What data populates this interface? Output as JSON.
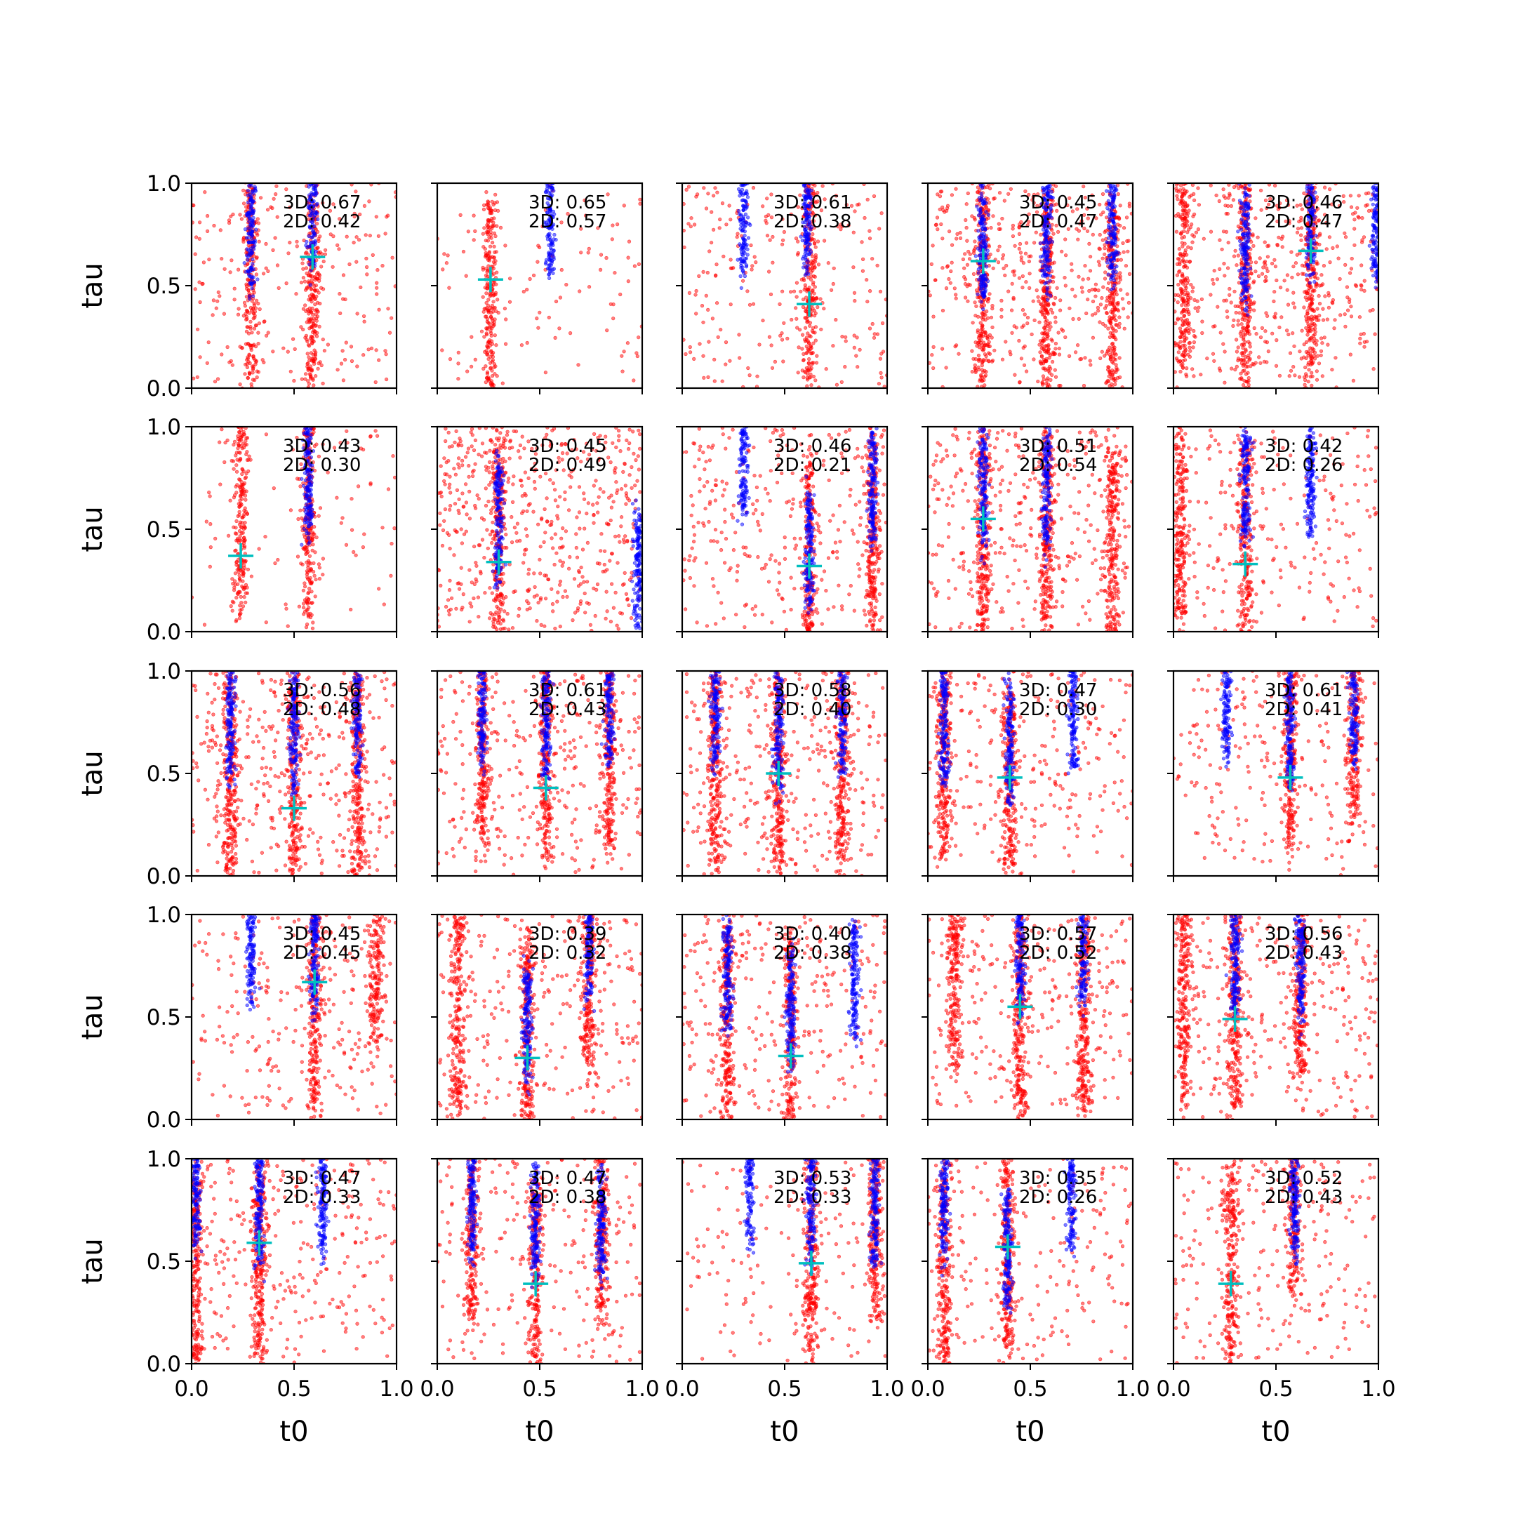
{
  "figure": {
    "layout": "5x5 grid of scatter subplots, shared axes",
    "colors": {
      "series_a": "#ff0000",
      "series_b": "#0000ff",
      "marker": "#00bfbf",
      "frame": "#000000"
    }
  },
  "chart_data": {
    "type": "scatter",
    "xlabel": "t0",
    "ylabel": "tau",
    "xlim": [
      0.0,
      1.0
    ],
    "ylim": [
      0.0,
      1.0
    ],
    "xticks": [
      "0.0",
      "0.5",
      "1.0"
    ],
    "yticks": [
      "0.0",
      "0.5",
      "1.0"
    ],
    "grid": false,
    "panels": [
      {
        "label3d": "3D: 0.67",
        "label2d": "2D: 0.42",
        "marker": [
          0.59,
          0.64
        ],
        "blue": [
          [
            0.29,
            0.78
          ],
          [
            0.59,
            0.88
          ]
        ],
        "red": [
          [
            0.29,
            0.55
          ],
          [
            0.59,
            0.45
          ]
        ],
        "scatter": 1.0
      },
      {
        "label3d": "3D: 0.65",
        "label2d": "2D: 0.57",
        "marker": [
          0.26,
          0.53
        ],
        "blue": [
          [
            0.55,
            0.85
          ]
        ],
        "red": [
          [
            0.26,
            0.4
          ]
        ],
        "scatter": 0.5
      },
      {
        "label3d": "3D: 0.61",
        "label2d": "2D: 0.38",
        "marker": [
          0.62,
          0.41
        ],
        "blue": [
          [
            0.3,
            0.85
          ],
          [
            0.61,
            0.85
          ]
        ],
        "red": [
          [
            0.62,
            0.55
          ]
        ],
        "scatter": 1.1
      },
      {
        "label3d": "3D: 0.45",
        "label2d": "2D: 0.47",
        "marker": [
          0.27,
          0.62
        ],
        "blue": [
          [
            0.27,
            0.7
          ],
          [
            0.58,
            0.75
          ],
          [
            0.9,
            0.8
          ]
        ],
        "red": [
          [
            0.27,
            0.5
          ],
          [
            0.58,
            0.45
          ],
          [
            0.9,
            0.45
          ]
        ],
        "scatter": 1.8
      },
      {
        "label3d": "3D: 0.46",
        "label2d": "2D: 0.47",
        "marker": [
          0.67,
          0.67
        ],
        "blue": [
          [
            0.35,
            0.7
          ],
          [
            0.67,
            0.85
          ],
          [
            0.99,
            0.8
          ]
        ],
        "red": [
          [
            0.05,
            0.6
          ],
          [
            0.35,
            0.5
          ],
          [
            0.67,
            0.55
          ]
        ],
        "scatter": 1.9
      },
      {
        "label3d": "3D: 0.43",
        "label2d": "2D: 0.30",
        "marker": [
          0.24,
          0.37
        ],
        "blue": [
          [
            0.57,
            0.75
          ]
        ],
        "red": [
          [
            0.24,
            0.6
          ],
          [
            0.57,
            0.55
          ]
        ],
        "scatter": 0.4
      },
      {
        "label3d": "3D: 0.45",
        "label2d": "2D: 0.49",
        "marker": [
          0.3,
          0.34
        ],
        "blue": [
          [
            0.3,
            0.55
          ],
          [
            0.98,
            0.3
          ]
        ],
        "red": [
          [
            0.3,
            0.45
          ]
        ],
        "scatter": 2.4
      },
      {
        "label3d": "3D: 0.46",
        "label2d": "2D: 0.21",
        "marker": [
          0.62,
          0.32
        ],
        "blue": [
          [
            0.3,
            0.85
          ],
          [
            0.62,
            0.4
          ],
          [
            0.93,
            0.7
          ]
        ],
        "red": [
          [
            0.62,
            0.35
          ],
          [
            0.93,
            0.45
          ]
        ],
        "scatter": 1.3
      },
      {
        "label3d": "3D: 0.51",
        "label2d": "2D: 0.54",
        "marker": [
          0.27,
          0.55
        ],
        "blue": [
          [
            0.27,
            0.7
          ],
          [
            0.58,
            0.7
          ]
        ],
        "red": [
          [
            0.27,
            0.5
          ],
          [
            0.58,
            0.45
          ],
          [
            0.9,
            0.4
          ]
        ],
        "scatter": 1.6
      },
      {
        "label3d": "3D: 0.42",
        "label2d": "2D: 0.26",
        "marker": [
          0.35,
          0.33
        ],
        "blue": [
          [
            0.35,
            0.7
          ],
          [
            0.67,
            0.75
          ]
        ],
        "red": [
          [
            0.03,
            0.55
          ],
          [
            0.35,
            0.45
          ]
        ],
        "scatter": 1.0
      },
      {
        "label3d": "3D: 0.56",
        "label2d": "2D: 0.48",
        "marker": [
          0.5,
          0.33
        ],
        "blue": [
          [
            0.19,
            0.75
          ],
          [
            0.5,
            0.7
          ],
          [
            0.81,
            0.8
          ]
        ],
        "red": [
          [
            0.19,
            0.5
          ],
          [
            0.5,
            0.5
          ],
          [
            0.81,
            0.5
          ]
        ],
        "scatter": 1.7
      },
      {
        "label3d": "3D: 0.61",
        "label2d": "2D: 0.43",
        "marker": [
          0.53,
          0.43
        ],
        "blue": [
          [
            0.22,
            0.85
          ],
          [
            0.53,
            0.75
          ],
          [
            0.84,
            0.85
          ]
        ],
        "red": [
          [
            0.22,
            0.7
          ],
          [
            0.53,
            0.6
          ],
          [
            0.84,
            0.65
          ]
        ],
        "scatter": 1.4
      },
      {
        "label3d": "3D: 0.58",
        "label2d": "2D: 0.40",
        "marker": [
          0.47,
          0.5
        ],
        "blue": [
          [
            0.16,
            0.8
          ],
          [
            0.47,
            0.7
          ],
          [
            0.78,
            0.8
          ]
        ],
        "red": [
          [
            0.16,
            0.55
          ],
          [
            0.47,
            0.5
          ],
          [
            0.78,
            0.55
          ]
        ],
        "scatter": 1.5
      },
      {
        "label3d": "3D: 0.47",
        "label2d": "2D: 0.30",
        "marker": [
          0.4,
          0.48
        ],
        "blue": [
          [
            0.08,
            0.75
          ],
          [
            0.4,
            0.65
          ],
          [
            0.71,
            0.8
          ]
        ],
        "red": [
          [
            0.08,
            0.55
          ],
          [
            0.4,
            0.45
          ]
        ],
        "scatter": 1.2
      },
      {
        "label3d": "3D: 0.61",
        "label2d": "2D: 0.41",
        "marker": [
          0.57,
          0.48
        ],
        "blue": [
          [
            0.26,
            0.85
          ],
          [
            0.57,
            0.7
          ],
          [
            0.88,
            0.85
          ]
        ],
        "red": [
          [
            0.57,
            0.65
          ],
          [
            0.88,
            0.75
          ]
        ],
        "scatter": 1.0
      },
      {
        "label3d": "3D: 0.45",
        "label2d": "2D: 0.45",
        "marker": [
          0.6,
          0.67
        ],
        "blue": [
          [
            0.29,
            0.85
          ],
          [
            0.6,
            0.8
          ]
        ],
        "red": [
          [
            0.6,
            0.55
          ],
          [
            0.9,
            0.85
          ]
        ],
        "scatter": 1.1
      },
      {
        "label3d": "3D: 0.39",
        "label2d": "2D: 0.32",
        "marker": [
          0.44,
          0.3
        ],
        "blue": [
          [
            0.44,
            0.45
          ],
          [
            0.74,
            0.85
          ]
        ],
        "red": [
          [
            0.1,
            0.55
          ],
          [
            0.44,
            0.4
          ],
          [
            0.74,
            0.75
          ]
        ],
        "scatter": 1.2
      },
      {
        "label3d": "3D: 0.40",
        "label2d": "2D: 0.38",
        "marker": [
          0.53,
          0.31
        ],
        "blue": [
          [
            0.22,
            0.7
          ],
          [
            0.53,
            0.55
          ],
          [
            0.84,
            0.7
          ]
        ],
        "red": [
          [
            0.22,
            0.5
          ],
          [
            0.53,
            0.4
          ]
        ],
        "scatter": 1.2
      },
      {
        "label3d": "3D: 0.57",
        "label2d": "2D: 0.52",
        "marker": [
          0.45,
          0.55
        ],
        "blue": [
          [
            0.45,
            0.8
          ],
          [
            0.76,
            0.85
          ]
        ],
        "red": [
          [
            0.13,
            0.75
          ],
          [
            0.45,
            0.5
          ],
          [
            0.76,
            0.5
          ]
        ],
        "scatter": 1.3
      },
      {
        "label3d": "3D: 0.56",
        "label2d": "2D: 0.43",
        "marker": [
          0.3,
          0.49
        ],
        "blue": [
          [
            0.3,
            0.8
          ],
          [
            0.62,
            0.75
          ]
        ],
        "red": [
          [
            0.05,
            0.6
          ],
          [
            0.3,
            0.55
          ],
          [
            0.62,
            0.7
          ]
        ],
        "scatter": 1.4
      },
      {
        "label3d": "3D: 0.47",
        "label2d": "2D: 0.33",
        "marker": [
          0.33,
          0.59
        ],
        "blue": [
          [
            0.02,
            0.85
          ],
          [
            0.33,
            0.75
          ],
          [
            0.64,
            0.8
          ]
        ],
        "red": [
          [
            0.02,
            0.4
          ],
          [
            0.33,
            0.45
          ]
        ],
        "scatter": 1.3
      },
      {
        "label3d": "3D: 0.47",
        "label2d": "2D: 0.38",
        "marker": [
          0.48,
          0.39
        ],
        "blue": [
          [
            0.17,
            0.8
          ],
          [
            0.48,
            0.7
          ],
          [
            0.8,
            0.7
          ]
        ],
        "red": [
          [
            0.17,
            0.7
          ],
          [
            0.48,
            0.4
          ],
          [
            0.8,
            0.7
          ]
        ],
        "scatter": 1.0
      },
      {
        "label3d": "3D: 0.53",
        "label2d": "2D: 0.33",
        "marker": [
          0.63,
          0.49
        ],
        "blue": [
          [
            0.33,
            0.85
          ],
          [
            0.63,
            0.75
          ],
          [
            0.94,
            0.75
          ]
        ],
        "red": [
          [
            0.63,
            0.55
          ],
          [
            0.94,
            0.7
          ]
        ],
        "scatter": 0.7
      },
      {
        "label3d": "3D: 0.35",
        "label2d": "2D: 0.26",
        "marker": [
          0.39,
          0.57
        ],
        "blue": [
          [
            0.08,
            0.8
          ],
          [
            0.39,
            0.55
          ],
          [
            0.7,
            0.85
          ]
        ],
        "red": [
          [
            0.08,
            0.45
          ],
          [
            0.39,
            0.55
          ]
        ],
        "scatter": 0.9
      },
      {
        "label3d": "3D: 0.52",
        "label2d": "2D: 0.43",
        "marker": [
          0.28,
          0.39
        ],
        "blue": [
          [
            0.59,
            0.8
          ]
        ],
        "red": [
          [
            0.28,
            0.45
          ],
          [
            0.59,
            0.85
          ]
        ],
        "scatter": 1.0
      }
    ]
  }
}
